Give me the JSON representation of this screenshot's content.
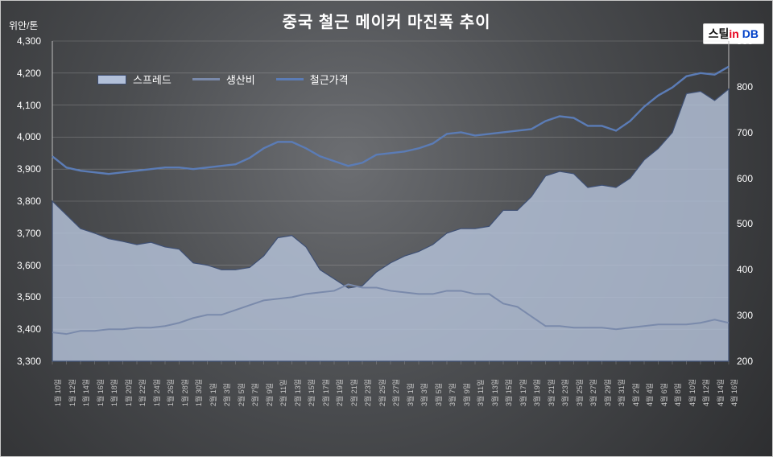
{
  "title": "중국 철근 메이커 마진폭 추이",
  "y_left_title": "위안/톤",
  "logo": {
    "t1": "스틸",
    "t2": "in",
    "t3": "DB"
  },
  "legend": {
    "spread": "스프레드",
    "cost": "생산비",
    "price": "철근가격"
  },
  "chart": {
    "type": "combo-area-line",
    "background": "radial-dark",
    "grid_color": "#bdbdbd",
    "area_fill": "#b6c3db",
    "area_stroke": "#3e4f73",
    "line_cost_color": "#7a8aab",
    "line_price_color": "#5b7cb6",
    "text_color": "#ffffff",
    "title_fontsize": 20,
    "axis_fontsize": 12,
    "tick_fontsize": 9,
    "yl": {
      "min": 3300,
      "max": 4300,
      "step": 100
    },
    "yr": {
      "min": 200,
      "max": 900,
      "step": 100
    },
    "x_labels": [
      "1월 10일",
      "1월 12일",
      "1월 14일",
      "1월 16일",
      "1월 18일",
      "1월 20일",
      "1월 22일",
      "1월 24일",
      "1월 26일",
      "1월 28일",
      "1월 30일",
      "2월 1일",
      "2월 3일",
      "2월 5일",
      "2월 7일",
      "2월 9일",
      "2월 11일",
      "2월 13일",
      "2월 15일",
      "2월 17일",
      "2월 19일",
      "2월 21일",
      "2월 23일",
      "2월 25일",
      "2월 27일",
      "3월 1일",
      "3월 3일",
      "3월 5일",
      "3월 7일",
      "3월 9일",
      "3월 11일",
      "3월 13일",
      "3월 15일",
      "3월 17일",
      "3월 19일",
      "3월 21일",
      "3월 23일",
      "3월 25일",
      "3월 27일",
      "3월 29일",
      "3월 31일",
      "4월 2일",
      "4월 4일",
      "4월 6일",
      "4월 8일",
      "4월 10일",
      "4월 12일",
      "4월 14일",
      "4월 16일"
    ],
    "series": {
      "spread": [
        550,
        520,
        490,
        480,
        468,
        462,
        455,
        460,
        450,
        445,
        415,
        410,
        400,
        400,
        405,
        430,
        470,
        475,
        450,
        400,
        380,
        360,
        365,
        395,
        415,
        430,
        440,
        455,
        480,
        490,
        490,
        495,
        530,
        530,
        560,
        605,
        615,
        610,
        580,
        585,
        580,
        600,
        640,
        665,
        700,
        785,
        790,
        770,
        795
      ],
      "cost": [
        3390,
        3385,
        3395,
        3395,
        3400,
        3400,
        3405,
        3405,
        3410,
        3420,
        3435,
        3445,
        3445,
        3460,
        3475,
        3490,
        3495,
        3500,
        3510,
        3515,
        3520,
        3540,
        3530,
        3530,
        3520,
        3515,
        3510,
        3510,
        3520,
        3520,
        3510,
        3510,
        3480,
        3470,
        3440,
        3410,
        3410,
        3405,
        3405,
        3405,
        3400,
        3405,
        3410,
        3415,
        3415,
        3415,
        3420,
        3430,
        3420
      ],
      "price": [
        3940,
        3905,
        3895,
        3890,
        3885,
        3890,
        3895,
        3900,
        3905,
        3905,
        3900,
        3905,
        3910,
        3915,
        3935,
        3965,
        3985,
        3985,
        3965,
        3940,
        3925,
        3910,
        3920,
        3945,
        3950,
        3955,
        3965,
        3980,
        4010,
        4015,
        4005,
        4010,
        4015,
        4020,
        4025,
        4050,
        4065,
        4060,
        4035,
        4035,
        4020,
        4050,
        4095,
        4130,
        4155,
        4190,
        4200,
        4195,
        4220
      ]
    }
  }
}
